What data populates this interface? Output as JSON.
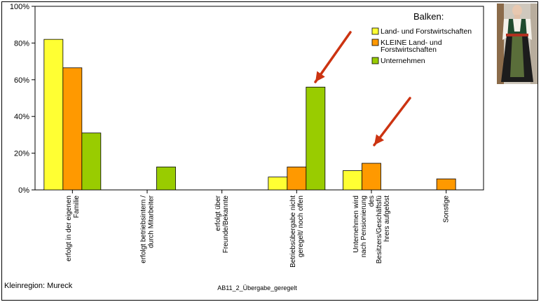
{
  "chart_data": {
    "type": "bar",
    "xlabel": "AB11_2_Übergabe_geregelt",
    "ylabel": "",
    "ylim": [
      0,
      100
    ],
    "y_ticks": [
      "0%",
      "20%",
      "40%",
      "60%",
      "80%",
      "100%"
    ],
    "grid": false,
    "legend_position": "top-right",
    "legend_title": "Balken:",
    "categories": [
      "erfolgt in der eigenen Familie",
      "erfolgt betriebsintern / durch Mitarbeiter",
      "erfolgt über Freunde/Bekannte",
      "Betriebsübergabe nicht geregelt/ noch offen",
      "Unternehmen wird nach Pensionierung des Besitzers/Geschäftsführers aufgelöst",
      "Sonstige"
    ],
    "category_label_lines": [
      [
        "erfolgt in der eigenen",
        "Familie"
      ],
      [
        "erfolgt betriebsintern /",
        "durch Mitarbeiter"
      ],
      [
        "erfolgt über",
        "Freunde/Bekannte"
      ],
      [
        "Betriebsübergabe nicht",
        "geregelt/ noch offen"
      ],
      [
        "Unternehmen wird",
        "nach Pensionierung",
        "des",
        "Besitzers/Geschäftsfü",
        "hrers aufgelöst"
      ],
      [
        "Sonstige"
      ]
    ],
    "series": [
      {
        "name": "Land- und Forstwirtschaften",
        "color": "#ffff33",
        "values": [
          82,
          0,
          0,
          7,
          10.5,
          0
        ]
      },
      {
        "name": "KLEINE Land- und Forstwirtschaften",
        "legend_lines": [
          "KLEINE Land- und",
          "Forstwirtschaften"
        ],
        "color": "#ff9900",
        "values": [
          66.5,
          0,
          0,
          12.5,
          14.5,
          6
        ]
      },
      {
        "name": "Unternehmen",
        "color": "#99cc00",
        "values": [
          31,
          12.5,
          0,
          56,
          0,
          0
        ]
      }
    ],
    "annotation": "Kleinregion: Mureck",
    "arrow_color": "#cc3311"
  }
}
